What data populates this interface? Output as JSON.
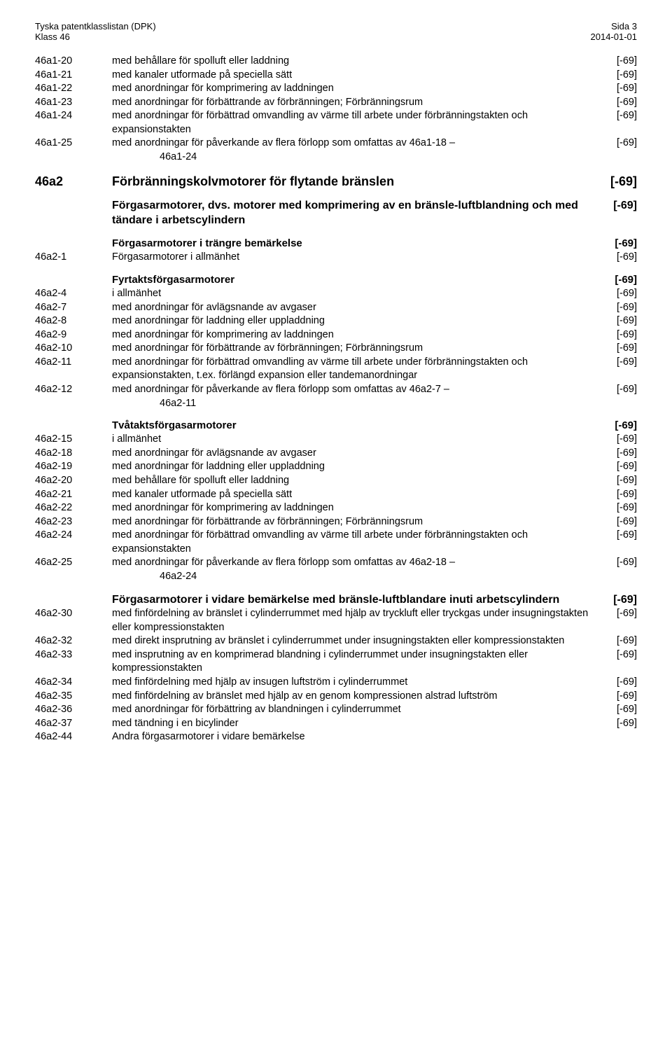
{
  "header": {
    "left1": "Tyska patentklasslistan (DPK)",
    "left2": "Klass 46",
    "right1": "Sida 3",
    "right2": "2014-01-01"
  },
  "rows": [
    {
      "level": "item",
      "code": "46a1-20",
      "desc": "med behållare för spolluft eller laddning",
      "ref": "[-69]",
      "gap": ""
    },
    {
      "level": "item",
      "code": "46a1-21",
      "desc": "med kanaler utformade på speciella sätt",
      "ref": "[-69]",
      "gap": ""
    },
    {
      "level": "item",
      "code": "46a1-22",
      "desc": "med anordningar för komprimering av laddningen",
      "ref": "[-69]",
      "gap": ""
    },
    {
      "level": "item",
      "code": "46a1-23",
      "desc": "med anordningar för förbättrande av förbränningen; Förbränningsrum",
      "ref": "[-69]",
      "gap": ""
    },
    {
      "level": "item",
      "code": "46a1-24",
      "desc": "med anordningar för förbättrad omvandling av värme till arbete under förbränningstakten och expansionstakten",
      "ref": "[-69]",
      "gap": ""
    },
    {
      "level": "item",
      "code": "46a1-25",
      "desc": "med anordningar för påverkande av flera förlopp som omfattas av 46a1-18 – 46a1-24",
      "ref": "[-69]",
      "gap": "",
      "cont": "46a1-24"
    },
    {
      "level": "h1",
      "code": "46a2",
      "desc": "Förbränningskolvmotorer för flytande bränslen",
      "ref": "[-69]",
      "gap": "gap-m"
    },
    {
      "level": "h2",
      "code": "",
      "desc": "Förgasarmotorer, dvs. motorer med komprimering av en bränsle-luftblandning och med tändare i arbetscylindern",
      "ref": "[-69]",
      "gap": "gap-m"
    },
    {
      "level": "h3",
      "code": "",
      "desc": "Förgasarmotorer i trängre bemärkelse",
      "ref": "[-69]",
      "gap": "gap-m"
    },
    {
      "level": "item",
      "code": "46a2-1",
      "desc": "Förgasarmotorer i allmänhet",
      "ref": "[-69]",
      "gap": ""
    },
    {
      "level": "h3",
      "code": "",
      "desc": "Fyrtaktsförgasarmotorer",
      "ref": "[-69]",
      "gap": "gap-m"
    },
    {
      "level": "item",
      "code": "46a2-4",
      "desc": "i allmänhet",
      "ref": "[-69]",
      "gap": ""
    },
    {
      "level": "item",
      "code": "46a2-7",
      "desc": "med anordningar för avlägsnande av avgaser",
      "ref": "[-69]",
      "gap": ""
    },
    {
      "level": "item",
      "code": "46a2-8",
      "desc": "med anordningar för laddning eller uppladdning",
      "ref": "[-69]",
      "gap": ""
    },
    {
      "level": "item",
      "code": "46a2-9",
      "desc": "med anordningar för komprimering av laddningen",
      "ref": "[-69]",
      "gap": ""
    },
    {
      "level": "item",
      "code": "46a2-10",
      "desc": "med anordningar för förbättrande av förbränningen; Förbränningsrum",
      "ref": "[-69]",
      "gap": ""
    },
    {
      "level": "item",
      "code": "46a2-11",
      "desc": "med anordningar för förbättrad omvandling av värme till arbete under förbränningstakten och expansionstakten, t.ex. förlängd expansion eller tandemanordningar",
      "ref": "[-69]",
      "gap": ""
    },
    {
      "level": "item",
      "code": "46a2-12",
      "desc": "med anordningar för påverkande av flera förlopp som omfattas av 46a2-7 – 46a2-11",
      "ref": "[-69]",
      "gap": "",
      "cont": "46a2-11"
    },
    {
      "level": "h3",
      "code": "",
      "desc": "Tvåtaktsförgasarmotorer",
      "ref": "[-69]",
      "gap": "gap-m"
    },
    {
      "level": "item",
      "code": "46a2-15",
      "desc": "i allmänhet",
      "ref": "[-69]",
      "gap": ""
    },
    {
      "level": "item",
      "code": "46a2-18",
      "desc": "med anordningar för avlägsnande av avgaser",
      "ref": "[-69]",
      "gap": ""
    },
    {
      "level": "item",
      "code": "46a2-19",
      "desc": "med anordningar för laddning eller uppladdning",
      "ref": "[-69]",
      "gap": ""
    },
    {
      "level": "item",
      "code": "46a2-20",
      "desc": "med behållare för spolluft eller laddning",
      "ref": "[-69]",
      "gap": ""
    },
    {
      "level": "item",
      "code": "46a2-21",
      "desc": "med kanaler utformade på speciella sätt",
      "ref": "[-69]",
      "gap": ""
    },
    {
      "level": "item",
      "code": "46a2-22",
      "desc": "med anordningar för komprimering av laddningen",
      "ref": "[-69]",
      "gap": ""
    },
    {
      "level": "item",
      "code": "46a2-23",
      "desc": "med anordningar för förbättrande av förbränningen; Förbränningsrum",
      "ref": "[-69]",
      "gap": ""
    },
    {
      "level": "item",
      "code": "46a2-24",
      "desc": "med anordningar för förbättrad omvandling av värme till arbete under förbränningstakten och expansionstakten",
      "ref": "[-69]",
      "gap": ""
    },
    {
      "level": "item",
      "code": "46a2-25",
      "desc": "med anordningar för påverkande av flera förlopp som omfattas av 46a2-18 – 46a2-24",
      "ref": "[-69]",
      "gap": "",
      "cont": "46a2-24"
    },
    {
      "level": "h2",
      "code": "",
      "desc": "Förgasarmotorer i vidare bemärkelse med bränsle-luftblandare inuti arbetscylindern",
      "ref": "[-69]",
      "gap": "gap-m"
    },
    {
      "level": "item",
      "code": "46a2-30",
      "desc": "med finfördelning av bränslet i cylinderrummet med hjälp av tryckluft eller tryckgas under insugningstakten eller kompressionstakten",
      "ref": "[-69]",
      "gap": ""
    },
    {
      "level": "item",
      "code": "46a2-32",
      "desc": "med direkt insprutning av bränslet i cylinderrummet under insugningstakten eller kompressionstakten",
      "ref": "[-69]",
      "gap": ""
    },
    {
      "level": "item",
      "code": "46a2-33",
      "desc": "med insprutning av en komprimerad blandning i cylinderrummet under insugningstakten eller kompressionstakten",
      "ref": "[-69]",
      "gap": ""
    },
    {
      "level": "item",
      "code": "46a2-34",
      "desc": "med finfördelning med hjälp av insugen luftström i cylinderrummet",
      "ref": "[-69]",
      "gap": ""
    },
    {
      "level": "item",
      "code": "46a2-35",
      "desc": "med finfördelning av bränslet med hjälp av en genom kompressionen alstrad luftström",
      "ref": "[-69]",
      "gap": ""
    },
    {
      "level": "item",
      "code": "46a2-36",
      "desc": "med anordningar för förbättring av blandningen i cylinderrummet",
      "ref": "[-69]",
      "gap": ""
    },
    {
      "level": "item",
      "code": "46a2-37",
      "desc": "med tändning i en bicylinder",
      "ref": "[-69]",
      "gap": ""
    },
    {
      "level": "item",
      "code": "46a2-44",
      "desc": "Andra förgasarmotorer i vidare bemärkelse",
      "ref": "",
      "gap": ""
    }
  ]
}
